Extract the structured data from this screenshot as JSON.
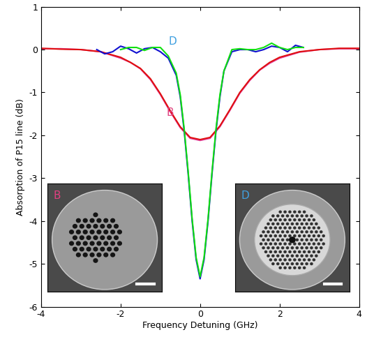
{
  "chart_data": {
    "type": "line",
    "xlabel": "Frequency Detuning (GHz)",
    "ylabel": "Absorption of P15 line (dB)",
    "xlim": [
      -4,
      4
    ],
    "xticks": [
      -4,
      -2,
      0,
      2,
      4
    ],
    "ylim": [
      -6,
      1
    ],
    "yticks": [
      -6,
      -5,
      -4,
      -3,
      -2,
      -1,
      0,
      1
    ],
    "series": [
      {
        "color": "#e040a0",
        "x": [
          -4,
          -3.5,
          -3,
          -2.5,
          -2,
          -1.75,
          -1.5,
          -1.25,
          -1,
          -0.75,
          -0.5,
          -0.25,
          0,
          0.25,
          0.5,
          0.75,
          1,
          1.25,
          1.5,
          1.75,
          2,
          2.5,
          3,
          3.5,
          4
        ],
        "values": [
          0.02,
          0.02,
          0.0,
          -0.05,
          -0.2,
          -0.3,
          -0.45,
          -0.7,
          -1.05,
          -1.45,
          -1.82,
          -2.07,
          -2.12,
          -2.07,
          -1.8,
          -1.42,
          -1.02,
          -0.72,
          -0.48,
          -0.32,
          -0.2,
          -0.06,
          0.0,
          0.02,
          0.02
        ]
      },
      {
        "color": "#e01010",
        "x": [
          -4,
          -3.5,
          -3,
          -2.5,
          -2,
          -1.75,
          -1.5,
          -1.25,
          -1,
          -0.75,
          -0.5,
          -0.25,
          0,
          0.25,
          0.5,
          0.75,
          1,
          1.25,
          1.5,
          1.75,
          2,
          2.5,
          3,
          3.5,
          4
        ],
        "values": [
          0.03,
          0.01,
          0.0,
          -0.05,
          -0.18,
          -0.3,
          -0.44,
          -0.68,
          -1.03,
          -1.43,
          -1.8,
          -2.05,
          -2.1,
          -2.05,
          -1.78,
          -1.4,
          -1.0,
          -0.7,
          -0.47,
          -0.3,
          -0.18,
          -0.05,
          0.0,
          0.03,
          0.03
        ]
      },
      {
        "color": "#1010d0",
        "x": [
          -2.6,
          -2.4,
          -2.2,
          -2,
          -1.8,
          -1.6,
          -1.4,
          -1.2,
          -1,
          -0.8,
          -0.6,
          -0.5,
          -0.4,
          -0.3,
          -0.2,
          -0.1,
          0,
          0.1,
          0.2,
          0.3,
          0.4,
          0.5,
          0.6,
          0.8,
          1,
          1.2,
          1.4,
          1.6,
          1.8,
          2,
          2.2,
          2.4,
          2.6
        ],
        "values": [
          0.0,
          -0.1,
          -0.05,
          0.08,
          0.02,
          -0.08,
          0.02,
          0.05,
          -0.05,
          -0.2,
          -0.6,
          -1.1,
          -1.9,
          -2.9,
          -4.0,
          -4.9,
          -5.35,
          -4.9,
          -4.0,
          -2.9,
          -1.9,
          -1.1,
          -0.5,
          -0.05,
          0.0,
          0.0,
          -0.05,
          0.0,
          0.08,
          0.05,
          -0.05,
          0.1,
          0.05
        ]
      },
      {
        "color": "#10e010",
        "x": [
          -2,
          -1.8,
          -1.6,
          -1.4,
          -1.2,
          -1,
          -0.8,
          -0.6,
          -0.5,
          -0.4,
          -0.3,
          -0.2,
          -0.1,
          0,
          0.1,
          0.2,
          0.3,
          0.4,
          0.5,
          0.6,
          0.8,
          1,
          1.2,
          1.4,
          1.6,
          1.8,
          2,
          2.2,
          2.4,
          2.6
        ],
        "values": [
          0.0,
          0.05,
          0.05,
          -0.02,
          0.05,
          0.05,
          -0.15,
          -0.55,
          -1.05,
          -1.85,
          -2.85,
          -3.95,
          -4.85,
          -5.3,
          -4.85,
          -3.95,
          -2.85,
          -1.85,
          -1.05,
          -0.5,
          0.0,
          0.02,
          0.0,
          0.0,
          0.05,
          0.15,
          0.05,
          0.0,
          0.05,
          0.05
        ]
      }
    ],
    "annotations": [
      {
        "text": "D",
        "color": "#40a0e0"
      },
      {
        "text": "B",
        "color": "#e04080"
      }
    ],
    "insets": [
      {
        "label": "B",
        "color": "#e04080"
      },
      {
        "label": "D",
        "color": "#40a0e0"
      }
    ]
  }
}
